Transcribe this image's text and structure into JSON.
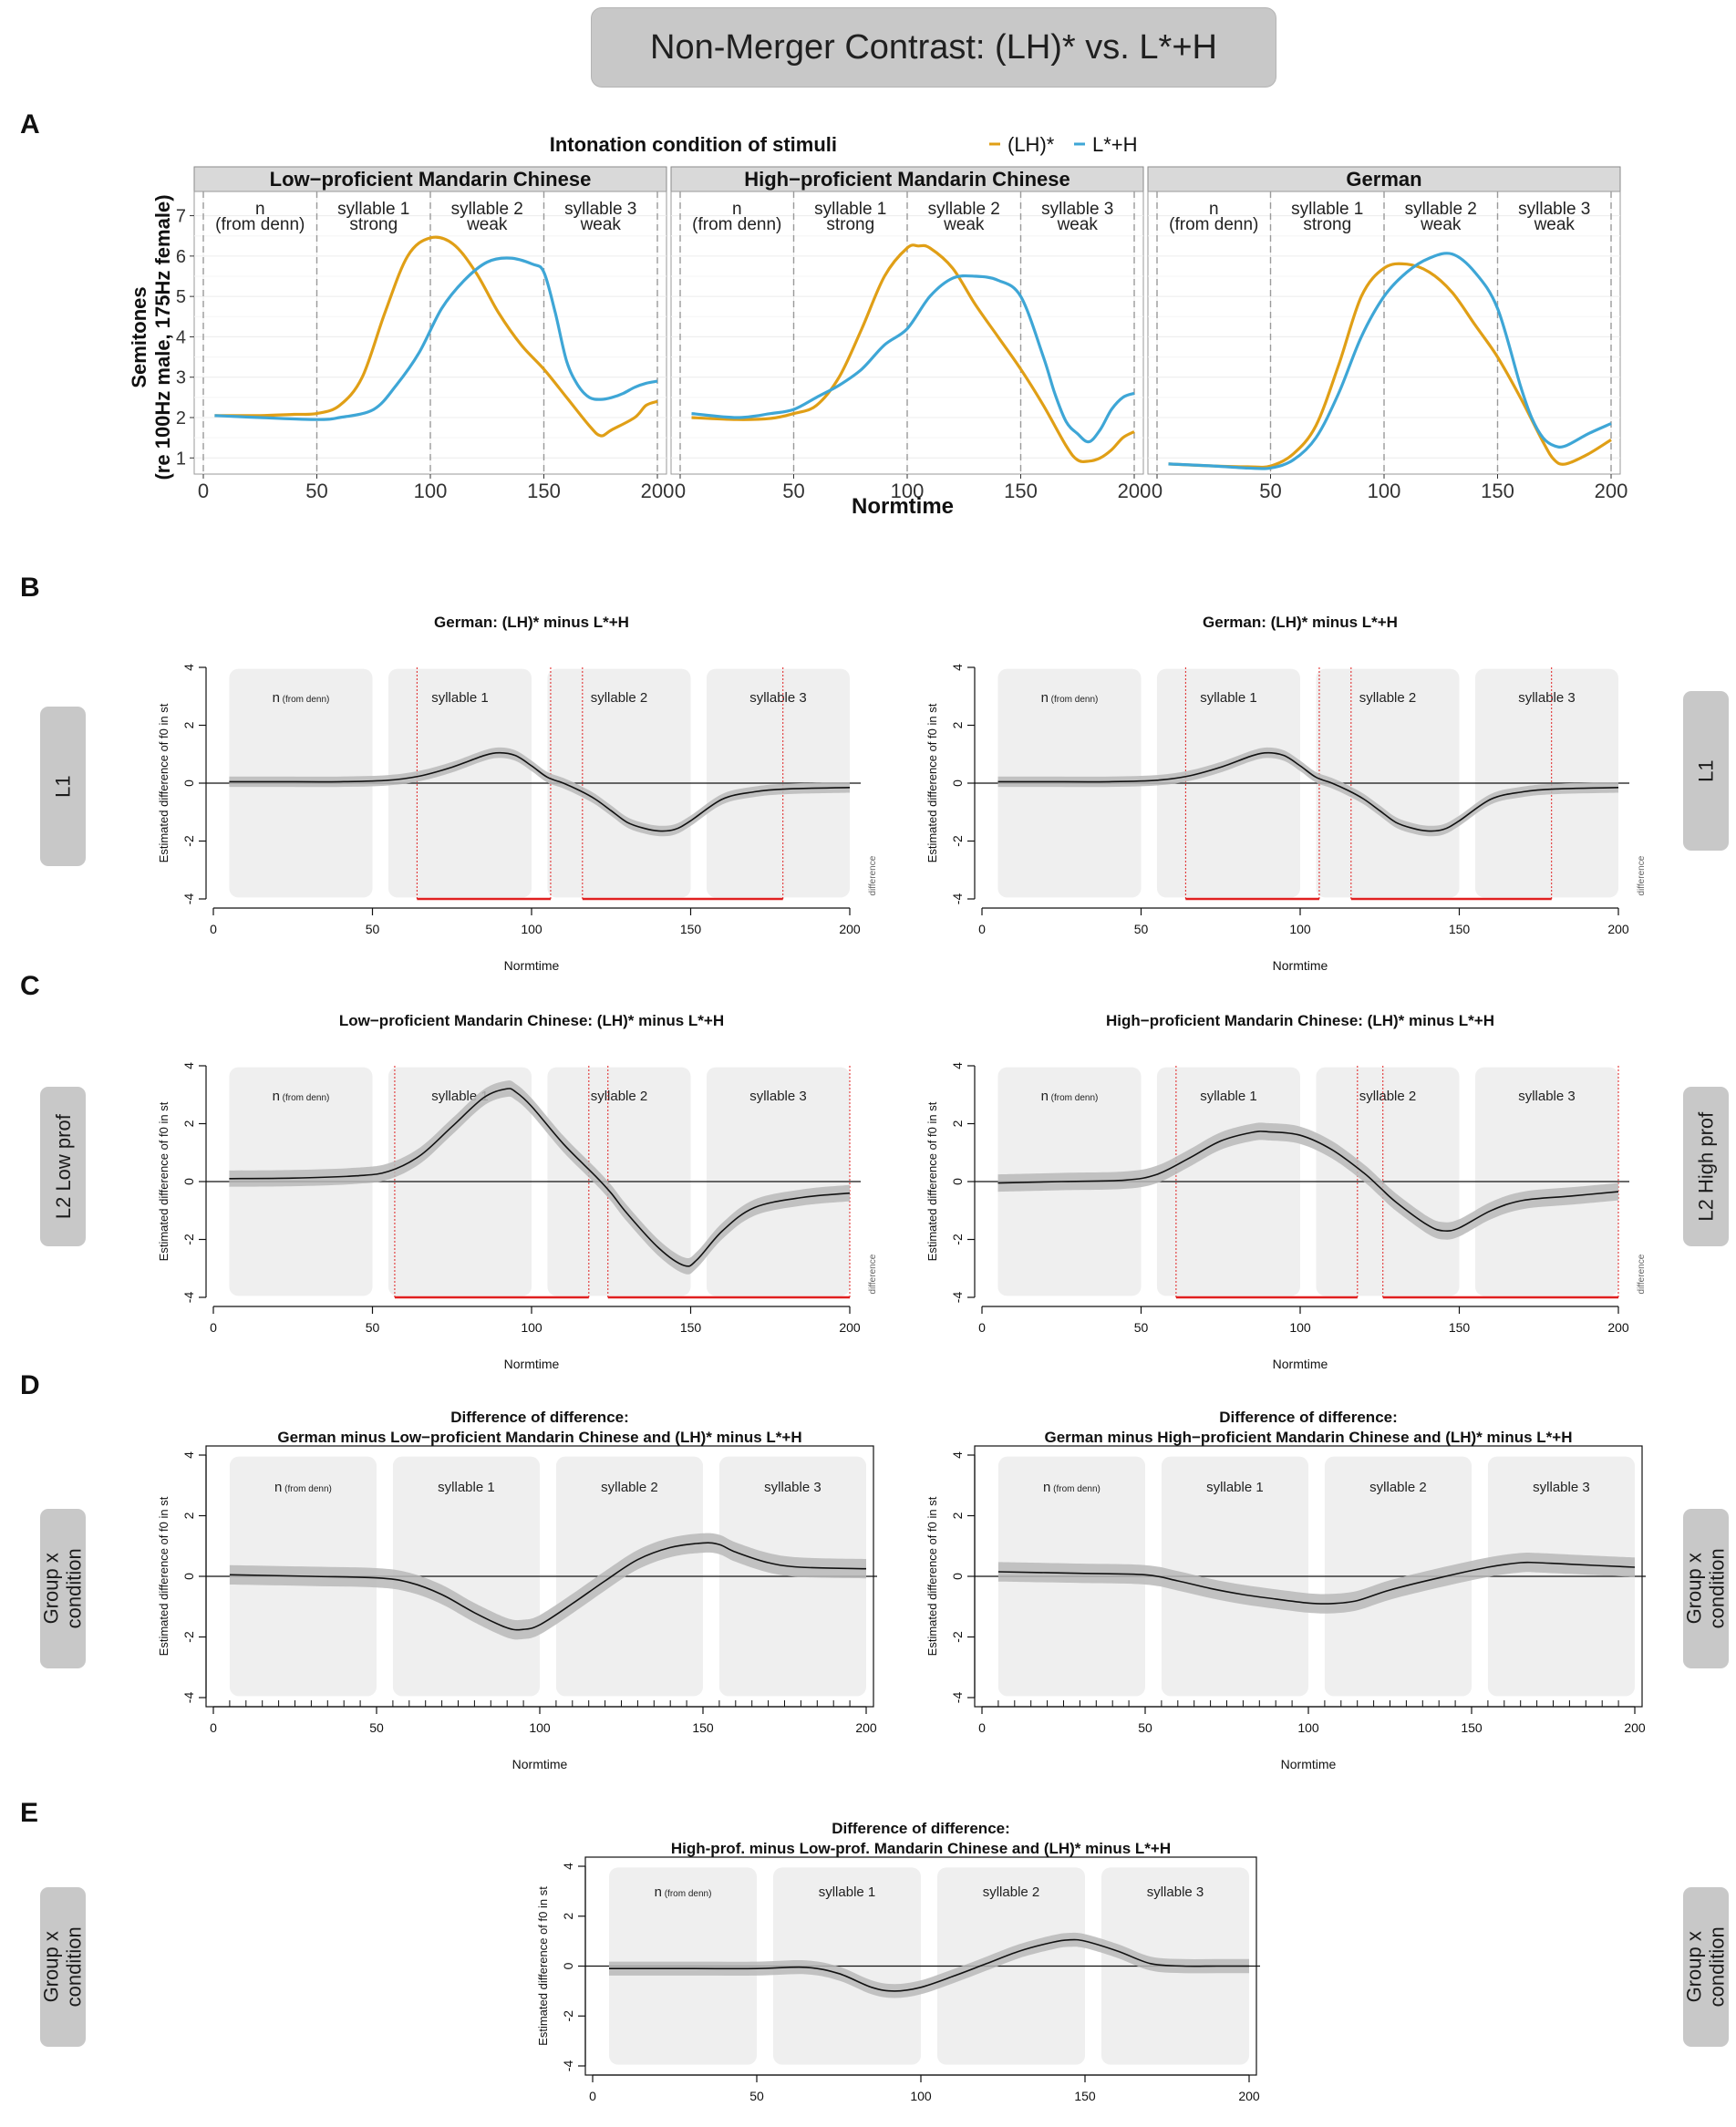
{
  "figure_title": "Non-Merger Contrast: (LH)* vs. L*+H",
  "panel_letters": [
    "A",
    "B",
    "C",
    "D",
    "E"
  ],
  "side_tabs": {
    "b_left": "L1",
    "b_right": "L1",
    "c_left": "L2 Low prof",
    "c_right": "L2 High prof",
    "d_left": "Group x\ncondition",
    "d_right": "Group x\ncondition",
    "e_left": "Group x\ncondition",
    "e_right": "Group x\ncondition"
  },
  "colors": {
    "lh_star": "#e09f16",
    "l_star_h": "#3ea6d6",
    "band": "#b8b8b8",
    "significance": "#e02020"
  },
  "chart_data": [
    {
      "id": "A",
      "type": "line",
      "legend_title": "Intonation condition of stimuli",
      "legend": [
        "(LH)*",
        "L*+H"
      ],
      "xlabel": "Normtime",
      "ylabel": "Semitones",
      "ylabel2": "(re 100Hz male, 175Hz female)",
      "xlim": [
        0,
        200
      ],
      "ylim": [
        0.6,
        7.6
      ],
      "xticks": [
        0,
        50,
        100,
        150,
        200
      ],
      "yticks": [
        1,
        2,
        3,
        4,
        5,
        6,
        7
      ],
      "segments": [
        {
          "label": "n",
          "sub": "(from denn)",
          "center": 25
        },
        {
          "label": "syllable 1",
          "sub": "strong",
          "center": 75
        },
        {
          "label": "syllable 2",
          "sub": "weak",
          "center": 125
        },
        {
          "label": "syllable 3",
          "sub": "weak",
          "center": 175
        }
      ],
      "boundaries": [
        0,
        50,
        100,
        150,
        200
      ],
      "facets": [
        {
          "title": "Low−proficient Mandarin Chinese",
          "series": [
            {
              "name": "(LH)*",
              "x": [
                5,
                25,
                40,
                50,
                60,
                70,
                80,
                90,
                100,
                110,
                120,
                130,
                140,
                150,
                160,
                170,
                175,
                180,
                190,
                195,
                200
              ],
              "y": [
                2.05,
                2.05,
                2.08,
                2.1,
                2.3,
                3.0,
                4.6,
                6.0,
                6.45,
                6.3,
                5.6,
                4.6,
                3.8,
                3.2,
                2.5,
                1.8,
                1.55,
                1.7,
                2.0,
                2.3,
                2.4
              ]
            },
            {
              "name": "L*+H",
              "x": [
                5,
                25,
                50,
                60,
                75,
                85,
                95,
                105,
                115,
                125,
                135,
                145,
                150,
                155,
                160,
                165,
                170,
                175,
                180,
                185,
                190,
                195,
                200
              ],
              "y": [
                2.05,
                2.0,
                1.95,
                2.0,
                2.2,
                2.8,
                3.6,
                4.7,
                5.4,
                5.85,
                5.95,
                5.8,
                5.6,
                4.6,
                3.4,
                2.8,
                2.5,
                2.45,
                2.5,
                2.6,
                2.75,
                2.85,
                2.9
              ]
            }
          ]
        },
        {
          "title": "High−proficient Mandarin Chinese",
          "series": [
            {
              "name": "(LH)*",
              "x": [
                5,
                25,
                40,
                50,
                60,
                70,
                80,
                90,
                100,
                105,
                110,
                120,
                130,
                140,
                150,
                160,
                170,
                175,
                180,
                185,
                190,
                195,
                200
              ],
              "y": [
                2.0,
                1.95,
                1.98,
                2.1,
                2.3,
                3.0,
                4.2,
                5.5,
                6.2,
                6.25,
                6.2,
                5.7,
                4.8,
                4.0,
                3.2,
                2.3,
                1.3,
                0.95,
                0.92,
                1.0,
                1.2,
                1.5,
                1.65
              ]
            },
            {
              "name": "L*+H",
              "x": [
                5,
                25,
                40,
                50,
                60,
                70,
                80,
                90,
                100,
                110,
                120,
                130,
                140,
                150,
                160,
                165,
                170,
                175,
                180,
                185,
                190,
                195,
                200
              ],
              "y": [
                2.1,
                2.0,
                2.1,
                2.2,
                2.5,
                2.8,
                3.2,
                3.8,
                4.2,
                5.0,
                5.45,
                5.5,
                5.4,
                5.0,
                3.5,
                2.6,
                1.9,
                1.6,
                1.4,
                1.7,
                2.2,
                2.5,
                2.6
              ]
            }
          ]
        },
        {
          "title": "German",
          "series": [
            {
              "name": "(LH)*",
              "x": [
                5,
                25,
                40,
                50,
                60,
                70,
                80,
                90,
                100,
                110,
                120,
                130,
                140,
                150,
                160,
                170,
                175,
                180,
                190,
                200
              ],
              "y": [
                0.85,
                0.8,
                0.78,
                0.8,
                1.1,
                1.8,
                3.3,
                5.0,
                5.7,
                5.8,
                5.6,
                5.1,
                4.3,
                3.5,
                2.5,
                1.4,
                0.95,
                0.85,
                1.1,
                1.45
              ]
            },
            {
              "name": "L*+H",
              "x": [
                5,
                25,
                40,
                50,
                60,
                70,
                80,
                90,
                100,
                110,
                120,
                130,
                140,
                150,
                160,
                165,
                170,
                175,
                180,
                190,
                200
              ],
              "y": [
                0.85,
                0.8,
                0.75,
                0.75,
                0.95,
                1.5,
                2.6,
                4.0,
                5.0,
                5.6,
                5.95,
                6.05,
                5.6,
                4.7,
                2.8,
                2.0,
                1.5,
                1.3,
                1.3,
                1.6,
                1.85
              ]
            }
          ]
        }
      ]
    },
    {
      "id": "B1",
      "type": "line",
      "title": "German: (LH)* minus L*+H",
      "xlabel": "Normtime",
      "ylabel": "Estimated difference of f0 in st",
      "xlim": [
        0,
        200
      ],
      "ylim": [
        -4,
        4
      ],
      "xticks": [
        0,
        50,
        100,
        150,
        200
      ],
      "yticks": [
        -4,
        -2,
        0,
        2,
        4
      ],
      "segment_labels": [
        "n",
        "syllable 1",
        "syllable 2",
        "syllable 3"
      ],
      "n_note": "(from denn)",
      "side_label": "difference",
      "red_lines": [
        64,
        106,
        116,
        179
      ],
      "red_spans": [
        [
          64,
          106
        ],
        [
          116,
          179
        ]
      ],
      "band": 0.18,
      "x": [
        5,
        20,
        40,
        55,
        65,
        75,
        85,
        90,
        95,
        100,
        105,
        110,
        115,
        120,
        125,
        130,
        135,
        140,
        145,
        150,
        160,
        170,
        180,
        200
      ],
      "y": [
        0.05,
        0.05,
        0.05,
        0.1,
        0.25,
        0.55,
        0.95,
        1.05,
        0.95,
        0.6,
        0.2,
        0.0,
        -0.25,
        -0.55,
        -0.95,
        -1.35,
        -1.55,
        -1.65,
        -1.6,
        -1.3,
        -0.55,
        -0.3,
        -0.2,
        -0.15
      ]
    },
    {
      "id": "B2",
      "type": "line",
      "title": "German: (LH)* minus L*+H",
      "xlabel": "Normtime",
      "ylabel": "Estimated difference of f0 in st",
      "xlim": [
        0,
        200
      ],
      "ylim": [
        -4,
        4
      ],
      "xticks": [
        0,
        50,
        100,
        150,
        200
      ],
      "yticks": [
        -4,
        -2,
        0,
        2,
        4
      ],
      "segment_labels": [
        "n",
        "syllable 1",
        "syllable 2",
        "syllable 3"
      ],
      "n_note": "(from denn)",
      "side_label": "difference",
      "red_lines": [
        64,
        106,
        116,
        179
      ],
      "red_spans": [
        [
          64,
          106
        ],
        [
          116,
          179
        ]
      ],
      "band": 0.18,
      "x": [
        5,
        20,
        40,
        55,
        65,
        75,
        85,
        90,
        95,
        100,
        105,
        110,
        115,
        120,
        125,
        130,
        135,
        140,
        145,
        150,
        160,
        170,
        180,
        200
      ],
      "y": [
        0.05,
        0.05,
        0.05,
        0.1,
        0.25,
        0.55,
        0.95,
        1.05,
        0.95,
        0.6,
        0.2,
        0.0,
        -0.25,
        -0.55,
        -0.95,
        -1.35,
        -1.55,
        -1.65,
        -1.6,
        -1.3,
        -0.55,
        -0.3,
        -0.2,
        -0.15
      ]
    },
    {
      "id": "C1",
      "type": "line",
      "title": "Low−proficient Mandarin Chinese: (LH)* minus L*+H",
      "xlabel": "Normtime",
      "ylabel": "Estimated difference of f0 in st",
      "xlim": [
        0,
        200
      ],
      "ylim": [
        -4,
        4
      ],
      "xticks": [
        0,
        50,
        100,
        150,
        200
      ],
      "yticks": [
        -4,
        -2,
        0,
        2,
        4
      ],
      "segment_labels": [
        "n",
        "syllable 1",
        "syllable 2",
        "syllable 3"
      ],
      "n_note": "(from denn)",
      "side_label": "difference",
      "red_lines": [
        57,
        118,
        124,
        200
      ],
      "red_spans": [
        [
          57,
          118
        ],
        [
          124,
          200
        ]
      ],
      "band": 0.28,
      "x": [
        5,
        25,
        45,
        55,
        65,
        75,
        85,
        92,
        95,
        100,
        110,
        120,
        125,
        130,
        140,
        148,
        152,
        160,
        170,
        185,
        200
      ],
      "y": [
        0.1,
        0.12,
        0.2,
        0.35,
        0.9,
        1.9,
        2.9,
        3.2,
        3.1,
        2.6,
        1.3,
        0.2,
        -0.4,
        -1.1,
        -2.3,
        -2.9,
        -2.7,
        -1.7,
        -0.9,
        -0.55,
        -0.4
      ]
    },
    {
      "id": "C2",
      "type": "line",
      "title": "High−proficient Mandarin Chinese: (LH)* minus L*+H",
      "xlabel": "Normtime",
      "ylabel": "Estimated difference of f0 in st",
      "xlim": [
        0,
        200
      ],
      "ylim": [
        -4,
        4
      ],
      "xticks": [
        0,
        50,
        100,
        150,
        200
      ],
      "yticks": [
        -4,
        -2,
        0,
        2,
        4
      ],
      "segment_labels": [
        "n",
        "syllable 1",
        "syllable 2",
        "syllable 3"
      ],
      "n_note": "(from denn)",
      "side_label": "difference",
      "red_lines": [
        61,
        118,
        126,
        200
      ],
      "red_spans": [
        [
          61,
          118
        ],
        [
          126,
          200
        ]
      ],
      "band": 0.3,
      "x": [
        5,
        25,
        45,
        55,
        65,
        75,
        85,
        90,
        100,
        110,
        120,
        125,
        130,
        140,
        145,
        150,
        160,
        170,
        185,
        200
      ],
      "y": [
        -0.05,
        0.0,
        0.05,
        0.25,
        0.8,
        1.4,
        1.7,
        1.72,
        1.6,
        1.1,
        0.3,
        -0.2,
        -0.7,
        -1.5,
        -1.7,
        -1.6,
        -1.0,
        -0.65,
        -0.5,
        -0.35
      ]
    },
    {
      "id": "D1",
      "type": "line",
      "title": "Difference of difference:",
      "subtitle": "German minus Low−proficient Mandarin Chinese and (LH)* minus L*+H",
      "xlabel": "Normtime",
      "ylabel": "Estimated difference of f0 in st",
      "xlim": [
        0,
        200
      ],
      "ylim": [
        -4,
        4
      ],
      "xticks": [
        0,
        50,
        100,
        150,
        200
      ],
      "yticks": [
        -4,
        -2,
        0,
        2,
        4
      ],
      "segment_labels": [
        "n",
        "syllable 1",
        "syllable 2",
        "syllable 3"
      ],
      "n_note": "(from denn)",
      "minor_ticks": true,
      "band": 0.32,
      "x": [
        5,
        30,
        50,
        60,
        70,
        80,
        90,
        95,
        100,
        110,
        120,
        130,
        140,
        150,
        155,
        160,
        170,
        180,
        200
      ],
      "y": [
        0.05,
        0.0,
        -0.05,
        -0.2,
        -0.6,
        -1.2,
        -1.7,
        -1.75,
        -1.6,
        -0.9,
        -0.15,
        0.55,
        0.95,
        1.1,
        1.05,
        0.8,
        0.45,
        0.3,
        0.25
      ]
    },
    {
      "id": "D2",
      "type": "line",
      "title": "Difference of difference:",
      "subtitle": "German minus High−proficient Mandarin Chinese and (LH)* minus L*+H",
      "xlabel": "Normtime",
      "ylabel": "Estimated difference of f0 in st",
      "xlim": [
        0,
        200
      ],
      "ylim": [
        -4,
        4
      ],
      "xticks": [
        0,
        50,
        100,
        150,
        200
      ],
      "yticks": [
        -4,
        -2,
        0,
        2,
        4
      ],
      "segment_labels": [
        "n",
        "syllable 1",
        "syllable 2",
        "syllable 3"
      ],
      "n_note": "(from denn)",
      "minor_ticks": true,
      "band": 0.32,
      "x": [
        5,
        30,
        50,
        60,
        70,
        80,
        90,
        100,
        107,
        115,
        125,
        140,
        155,
        165,
        170,
        180,
        200
      ],
      "y": [
        0.15,
        0.1,
        0.05,
        -0.15,
        -0.4,
        -0.6,
        -0.75,
        -0.88,
        -0.9,
        -0.8,
        -0.45,
        -0.05,
        0.3,
        0.45,
        0.45,
        0.4,
        0.3
      ]
    },
    {
      "id": "E",
      "type": "line",
      "title": "Difference of difference:",
      "subtitle": "High-prof. minus Low-prof. Mandarin Chinese and (LH)* minus L*+H",
      "xlabel": "Normtime",
      "ylabel": "Estimated difference of f0 in st",
      "xlim": [
        0,
        200
      ],
      "ylim": [
        -4,
        4
      ],
      "xticks": [
        0,
        50,
        100,
        150,
        200
      ],
      "yticks": [
        -4,
        -2,
        0,
        2,
        4
      ],
      "segment_labels": [
        "n",
        "syllable 1",
        "syllable 2",
        "syllable 3"
      ],
      "n_note": "(from denn)",
      "band": 0.28,
      "x": [
        5,
        30,
        50,
        65,
        75,
        85,
        92,
        100,
        110,
        120,
        130,
        140,
        145,
        150,
        160,
        170,
        180,
        190,
        200
      ],
      "y": [
        -0.1,
        -0.1,
        -0.1,
        -0.05,
        -0.3,
        -0.85,
        -1.0,
        -0.85,
        -0.4,
        0.1,
        0.6,
        0.95,
        1.05,
        1.0,
        0.6,
        0.1,
        0.0,
        0.0,
        0.0
      ]
    }
  ]
}
